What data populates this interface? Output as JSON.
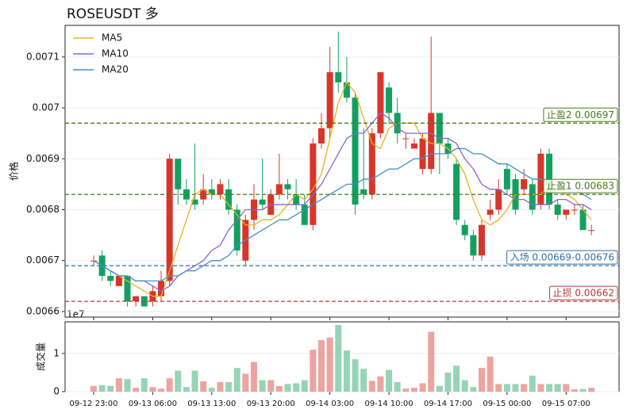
{
  "chart_data": [
    {
      "type": "candlestick",
      "title": "ROSEUSDT  多",
      "ylabel": "价格",
      "categories": [
        "09-12 23:00",
        null,
        null,
        null,
        null,
        null,
        null,
        "09-13 06:00",
        null,
        null,
        null,
        null,
        null,
        null,
        "09-13 13:00",
        null,
        null,
        null,
        null,
        null,
        null,
        "09-13 20:00",
        null,
        null,
        null,
        null,
        null,
        null,
        "09-14 03:00",
        null,
        null,
        null,
        null,
        null,
        null,
        "09-14 10:00",
        null,
        null,
        null,
        null,
        null,
        null,
        "09-14 17:00",
        null,
        null,
        null,
        null,
        null,
        null,
        "09-15 00:00",
        null,
        null,
        null,
        null,
        null,
        null,
        "09-15 07:00",
        null,
        null,
        null
      ],
      "open": [
        0.0067,
        0.00671,
        0.00667,
        0.00665,
        0.00667,
        0.00662,
        0.00663,
        0.00662,
        0.00663,
        0.00666,
        0.0069,
        0.00684,
        0.00682,
        0.00682,
        0.00684,
        0.00683,
        0.00684,
        0.0068,
        0.0067,
        0.00678,
        0.00682,
        0.00679,
        0.00683,
        0.00685,
        0.00683,
        0.00681,
        0.00677,
        0.00693,
        0.00696,
        0.00707,
        0.00705,
        0.00702,
        0.00684,
        0.00683,
        0.00695,
        0.00704,
        0.00699,
        0.00694,
        0.00692,
        0.00688,
        0.00688,
        0.00699,
        0.00693,
        0.00689,
        0.00677,
        0.00675,
        0.00671,
        0.00679,
        0.0068,
        0.00688,
        0.00686,
        0.00684,
        0.00685,
        0.00681,
        0.00691,
        0.00681,
        0.00679,
        0.0068,
        0.0068,
        0.00676
      ],
      "high": [
        0.00671,
        0.00672,
        0.00668,
        0.00667,
        0.00667,
        0.00663,
        0.00663,
        0.00665,
        0.00668,
        0.00691,
        0.0069,
        0.00686,
        0.00693,
        0.00687,
        0.00686,
        0.00686,
        0.00686,
        0.00681,
        0.00679,
        0.00685,
        0.0069,
        0.00684,
        0.00691,
        0.00686,
        0.00686,
        0.00683,
        0.00694,
        0.00699,
        0.00712,
        0.00715,
        0.0071,
        0.00703,
        0.00696,
        0.00696,
        0.00707,
        0.00705,
        0.00702,
        0.00695,
        0.00694,
        0.00695,
        0.00714,
        0.00699,
        0.00694,
        0.0069,
        0.00678,
        0.00676,
        0.00678,
        0.00682,
        0.00686,
        0.00689,
        0.00687,
        0.00688,
        0.00686,
        0.00692,
        0.00692,
        0.00682,
        0.0068,
        0.00681,
        0.00681,
        0.00677
      ],
      "low": [
        0.00669,
        0.00666,
        0.00665,
        0.00665,
        0.00661,
        0.00661,
        0.00661,
        0.00661,
        0.00662,
        0.00665,
        0.00681,
        0.00681,
        0.0068,
        0.00681,
        0.00682,
        0.00682,
        0.00679,
        0.00671,
        0.00669,
        0.00676,
        0.0068,
        0.00679,
        0.00682,
        0.00682,
        0.0068,
        0.00677,
        0.00676,
        0.00692,
        0.00694,
        0.00703,
        0.00701,
        0.00679,
        0.00682,
        0.00682,
        0.00694,
        0.00697,
        0.00693,
        0.00692,
        0.00692,
        0.00687,
        0.00687,
        0.00687,
        0.0069,
        0.00677,
        0.00674,
        0.0067,
        0.0067,
        0.00678,
        0.00679,
        0.00683,
        0.00679,
        0.00683,
        0.00679,
        0.0068,
        0.0068,
        0.00678,
        0.00678,
        0.00679,
        0.00676,
        0.00675
      ],
      "close": [
        0.0067,
        0.00667,
        0.00666,
        0.00667,
        0.00662,
        0.00663,
        0.00661,
        0.00664,
        0.00666,
        0.0069,
        0.00684,
        0.00682,
        0.00681,
        0.00684,
        0.00683,
        0.00685,
        0.0068,
        0.00672,
        0.00678,
        0.00682,
        0.00681,
        0.00683,
        0.00685,
        0.00684,
        0.00681,
        0.00677,
        0.00693,
        0.00696,
        0.00707,
        0.00705,
        0.00702,
        0.00681,
        0.00683,
        0.00695,
        0.00707,
        0.00699,
        0.00695,
        0.00694,
        0.00693,
        0.00694,
        0.00699,
        0.00693,
        0.00691,
        0.00678,
        0.00675,
        0.00671,
        0.00677,
        0.0068,
        0.00684,
        0.00684,
        0.0068,
        0.00686,
        0.0068,
        0.00691,
        0.00681,
        0.00679,
        0.0068,
        0.0068,
        0.00676,
        0.00676
      ],
      "up_color": "#d8352a",
      "down_color": "#13a05f",
      "series": [
        {
          "name": "MA5",
          "color": "#e8b21d",
          "values": [
            0.0067,
            0.00669,
            0.00668,
            0.00667,
            0.00666,
            0.00665,
            0.00664,
            0.00663,
            0.00663,
            0.00668,
            0.00673,
            0.00678,
            0.00683,
            0.00684,
            0.00683,
            0.00683,
            0.00681,
            0.00679,
            0.00677,
            0.00677,
            0.00678,
            0.00678,
            0.00679,
            0.00681,
            0.00683,
            0.00682,
            0.00684,
            0.00687,
            0.00694,
            0.00701,
            0.00705,
            0.00703,
            0.00698,
            0.00693,
            0.00692,
            0.00696,
            0.00697,
            0.00697,
            0.00697,
            0.00694,
            0.00693,
            0.00693,
            0.00692,
            0.0069,
            0.00687,
            0.00682,
            0.00678,
            0.00677,
            0.00678,
            0.0068,
            0.00683,
            0.00683,
            0.00683,
            0.00683,
            0.00685,
            0.00684,
            0.00683,
            0.00682,
            0.0068,
            0.00678
          ]
        },
        {
          "name": "MA10",
          "color": "#8b66cf",
          "values": [
            0.0067,
            0.00669,
            0.00668,
            0.00667,
            0.00667,
            0.00666,
            0.00666,
            0.00665,
            0.00664,
            0.00665,
            0.00667,
            0.00668,
            0.00669,
            0.0067,
            0.00672,
            0.00673,
            0.00676,
            0.00678,
            0.0068,
            0.0068,
            0.0068,
            0.00681,
            0.00681,
            0.00681,
            0.00681,
            0.00681,
            0.00683,
            0.00685,
            0.00688,
            0.00691,
            0.00694,
            0.00695,
            0.00695,
            0.00697,
            0.00699,
            0.00698,
            0.00696,
            0.00695,
            0.00695,
            0.00695,
            0.00695,
            0.00694,
            0.00694,
            0.00693,
            0.0069,
            0.00688,
            0.00685,
            0.00684,
            0.00684,
            0.00683,
            0.00682,
            0.00682,
            0.00681,
            0.00681,
            0.00681,
            0.00682,
            0.00682,
            0.00681,
            0.00681,
            0.0068
          ]
        },
        {
          "name": "MA20",
          "color": "#3f8fcf",
          "values": [
            0.0067,
            0.00669,
            0.00668,
            0.00667,
            0.00667,
            0.00666,
            0.00666,
            0.00666,
            0.00666,
            0.00667,
            0.00667,
            0.00668,
            0.00668,
            0.00669,
            0.0067,
            0.0067,
            0.00671,
            0.00673,
            0.00674,
            0.00675,
            0.00676,
            0.00677,
            0.00678,
            0.00678,
            0.00679,
            0.0068,
            0.00681,
            0.00682,
            0.00683,
            0.00684,
            0.00685,
            0.00685,
            0.00686,
            0.00686,
            0.00687,
            0.00688,
            0.00688,
            0.00689,
            0.0069,
            0.0069,
            0.00691,
            0.00691,
            0.00691,
            0.00692,
            0.00692,
            0.00691,
            0.00691,
            0.0069,
            0.00689,
            0.00689,
            0.00688,
            0.00687,
            0.00686,
            0.00686,
            0.00685,
            0.00685,
            0.00684,
            0.00684,
            0.00683,
            0.00682
          ]
        }
      ],
      "levels": [
        {
          "label": "止盈2 0.00697",
          "value": 0.00697,
          "color": "#4a7a1c"
        },
        {
          "label": "止盈1 0.00683",
          "value": 0.00683,
          "color": "#4a7a1c"
        },
        {
          "label": "入场 0.00669-0.00676",
          "value": 0.00669,
          "color": "#2f6fa8"
        },
        {
          "label": "止损 0.00662",
          "value": 0.00662,
          "color": "#b23a3a"
        }
      ],
      "ylim": [
        0.006589,
        0.007162
      ],
      "yticks": [
        0.0066,
        0.0067,
        0.0068,
        0.0069,
        0.007,
        0.0071
      ],
      "grid": true,
      "legend": "upper left"
    },
    {
      "type": "bar",
      "ylabel": "成交量",
      "offset_label": "1e7",
      "values": [
        0.15,
        0.17,
        0.15,
        0.35,
        0.33,
        0.1,
        0.35,
        0.12,
        0.08,
        0.35,
        0.55,
        0.12,
        0.55,
        0.27,
        0.1,
        0.25,
        0.25,
        0.62,
        0.47,
        0.78,
        0.3,
        0.3,
        0.15,
        0.2,
        0.22,
        0.3,
        1.1,
        1.35,
        1.42,
        1.75,
        1.08,
        0.85,
        0.6,
        0.28,
        0.4,
        0.57,
        0.25,
        0.08,
        0.1,
        0.22,
        1.57,
        0.15,
        0.5,
        0.68,
        0.3,
        0.12,
        0.62,
        0.92,
        0.2,
        0.2,
        0.2,
        0.2,
        0.42,
        0.2,
        0.2,
        0.2,
        0.2,
        0.06,
        0.07,
        0.1
      ],
      "ylim": [
        0,
        1.83
      ],
      "yticks": [
        0,
        1
      ],
      "grid": true
    }
  ]
}
